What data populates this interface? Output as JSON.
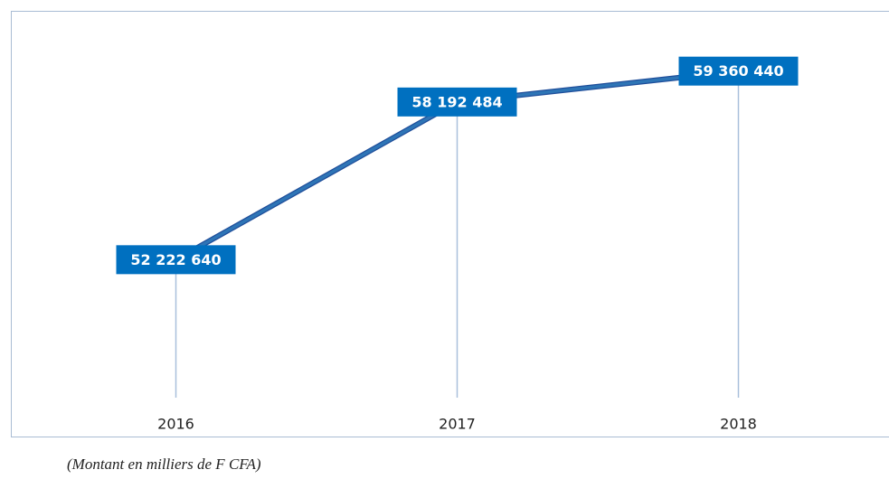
{
  "chart_data": {
    "type": "line",
    "categories": [
      "2016",
      "2017",
      "2018"
    ],
    "series": [
      {
        "color": "#2e75b6",
        "values": [
          52222640,
          58192484,
          59360440
        ],
        "value_labels": [
          "52 222 640",
          "58 192 484",
          "59 360 440"
        ]
      }
    ],
    "ylim": [
      47000000,
      60000000
    ],
    "note": "(Montant en milliers de F CFA)"
  }
}
